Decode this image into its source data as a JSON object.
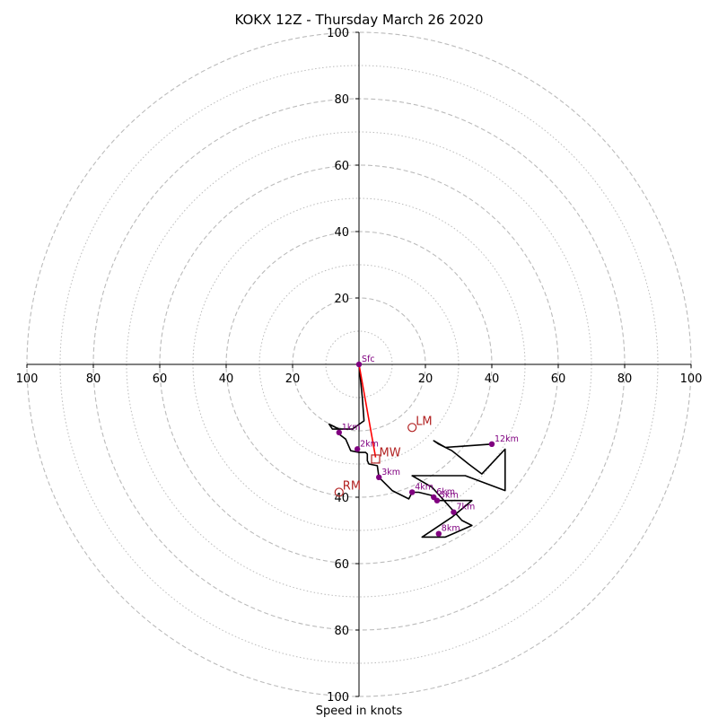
{
  "chart_data": {
    "type": "hodograph",
    "title": "KOKX 12Z - Thursday March 26 2020",
    "xlabel": "Speed in knots",
    "range": [
      -100,
      100
    ],
    "ring_major": [
      20,
      40,
      60,
      80,
      100
    ],
    "ring_minor": [
      10,
      30,
      50,
      70,
      90
    ],
    "x_tick_labels": [
      "100",
      "80",
      "60",
      "40",
      "20",
      "20",
      "40",
      "60",
      "80",
      "100"
    ],
    "x_tick_values": [
      -100,
      -80,
      -60,
      -40,
      -20,
      20,
      40,
      60,
      80,
      100
    ],
    "y_tick_labels_up": [
      "20",
      "40",
      "60",
      "80",
      "100"
    ],
    "y_tick_values_up": [
      20,
      40,
      60,
      80,
      100
    ],
    "y_tick_labels_down": [
      "40",
      "60",
      "80",
      "100"
    ],
    "y_tick_values_down": [
      -40,
      -60,
      -80,
      -100
    ],
    "trace": [
      [
        0,
        0
      ],
      [
        1,
        -10
      ],
      [
        1.5,
        -17
      ],
      [
        -2,
        -19.5
      ],
      [
        -8,
        -19.5
      ],
      [
        -9,
        -18
      ],
      [
        -6,
        -19.5
      ],
      [
        -6,
        -21
      ],
      [
        -4,
        -22.5
      ],
      [
        -2.5,
        -26
      ],
      [
        0,
        -26.5
      ],
      [
        2,
        -26.5
      ],
      [
        2.5,
        -27
      ],
      [
        2.5,
        -29
      ],
      [
        3,
        -30
      ],
      [
        5.5,
        -30.5
      ],
      [
        6,
        -34
      ],
      [
        10,
        -38
      ],
      [
        15,
        -40.5
      ],
      [
        16,
        -38.5
      ],
      [
        18,
        -38.5
      ],
      [
        22,
        -39.5
      ],
      [
        24,
        -41
      ],
      [
        34,
        -41
      ],
      [
        28,
        -46
      ],
      [
        19,
        -52
      ],
      [
        26,
        -52
      ],
      [
        34,
        -48.5
      ],
      [
        31,
        -47
      ],
      [
        22,
        -37
      ],
      [
        16,
        -33.5
      ],
      [
        32,
        -33.5
      ],
      [
        44,
        -38
      ],
      [
        44,
        -25.5
      ],
      [
        37,
        -33
      ],
      [
        33,
        -30
      ],
      [
        28,
        -26
      ],
      [
        24,
        -24
      ],
      [
        22.5,
        -23
      ],
      [
        26,
        -25
      ],
      [
        40,
        -24
      ]
    ],
    "height_markers": [
      {
        "label": "Sfc",
        "u": 0,
        "v": 0
      },
      {
        "label": "1km",
        "u": -6,
        "v": -20.5
      },
      {
        "label": "2km",
        "u": -0.5,
        "v": -25.5
      },
      {
        "label": "3km",
        "u": 6,
        "v": -34
      },
      {
        "label": "4km",
        "u": 16,
        "v": -38.5
      },
      {
        "label": "5km",
        "u": 23.5,
        "v": -41
      },
      {
        "label": "6km",
        "u": 22.5,
        "v": -40
      },
      {
        "label": "7km",
        "u": 28.5,
        "v": -44.5
      },
      {
        "label": "8km",
        "u": 24,
        "v": -51
      },
      {
        "label": "12km",
        "u": 40,
        "v": -24
      }
    ],
    "storm_motion": {
      "lm": {
        "label": "LM",
        "u": 16,
        "v": -19
      },
      "mw": {
        "label": "MW",
        "u": 5,
        "v": -28.5
      },
      "rm": {
        "label": "RM",
        "u": -6,
        "v": -38.5
      }
    },
    "shear_vector": {
      "from": [
        0,
        0
      ],
      "to": [
        5,
        -28
      ]
    }
  },
  "colors": {
    "trace": "#000000",
    "markers": "#800080",
    "motion": "#b22222",
    "shear": "#ff0000",
    "grid": "#bbbbbb"
  }
}
